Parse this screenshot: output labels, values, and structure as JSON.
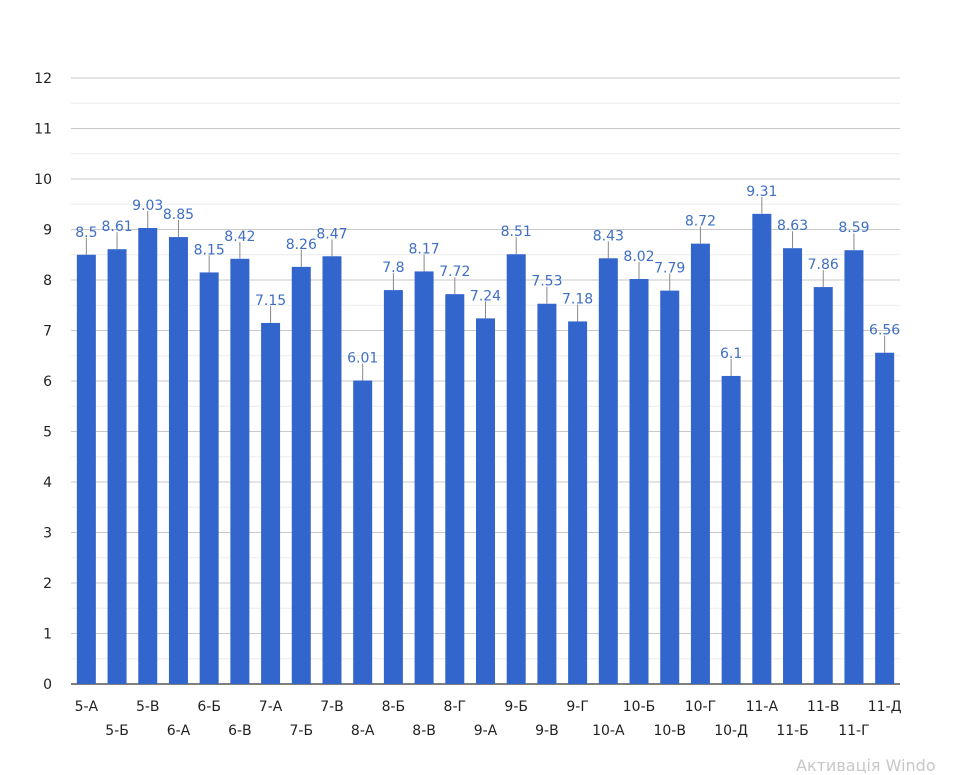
{
  "chart_data": {
    "type": "bar",
    "title": "",
    "xlabel": "",
    "ylabel": "",
    "ylim": [
      0,
      12
    ],
    "yticks": [
      0,
      1,
      2,
      3,
      4,
      5,
      6,
      7,
      8,
      9,
      10,
      11,
      12
    ],
    "grid": true,
    "legend": "none",
    "bar_color": "#3366cc",
    "label_color": "#3f6fc4",
    "categories": [
      "5-А",
      "5-Б",
      "5-В",
      "6-А",
      "6-Б",
      "6-В",
      "7-А",
      "7-Б",
      "7-В",
      "8-А",
      "8-Б",
      "8-В",
      "8-Г",
      "9-А",
      "9-Б",
      "9-В",
      "9-Г",
      "10-А",
      "10-Б",
      "10-В",
      "10-Г",
      "10-Д",
      "11-А",
      "11-Б",
      "11-В",
      "11-Г",
      "11-Д"
    ],
    "values": [
      8.5,
      8.61,
      9.03,
      8.85,
      8.15,
      8.42,
      7.15,
      8.26,
      8.47,
      6.01,
      7.8,
      8.17,
      7.72,
      7.24,
      8.51,
      7.53,
      7.18,
      8.43,
      8.02,
      7.79,
      8.72,
      6.1,
      9.31,
      8.63,
      7.86,
      8.59,
      6.56
    ],
    "data_labels": [
      "8.5",
      "8.61",
      "9.03",
      "8.85",
      "8.15",
      "8.42",
      "7.15",
      "8.26",
      "8.47",
      "6.01",
      "7.8",
      "8.17",
      "7.72",
      "7.24",
      "8.51",
      "7.53",
      "7.18",
      "8.43",
      "8.02",
      "7.79",
      "8.72",
      "6.1",
      "9.31",
      "8.63",
      "7.86",
      "8.59",
      "6.56"
    ]
  },
  "watermark_text": "Активація Windo"
}
